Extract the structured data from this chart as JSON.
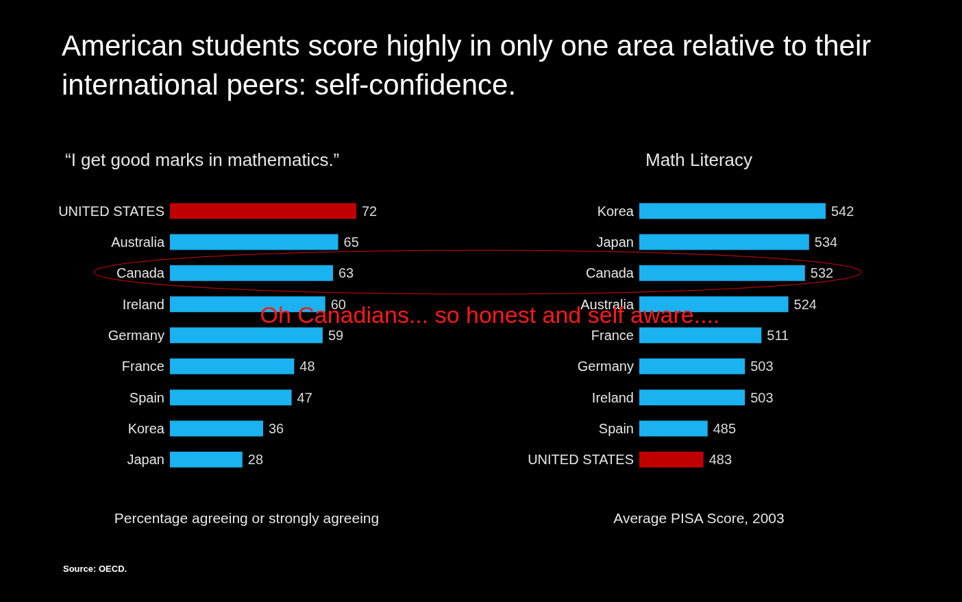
{
  "chart_data": [
    {
      "type": "bar",
      "orientation": "horizontal",
      "title": "American students score highly in only one area relative to their international peers: self-confidence.",
      "subtitle": "“I get good marks in mathematics.”",
      "xlabel": "Percentage agreeing or strongly agreeing",
      "categories": [
        "UNITED STATES",
        "Australia",
        "Canada",
        "Ireland",
        "Germany",
        "France",
        "Spain",
        "Korea",
        "Japan"
      ],
      "values": [
        72,
        65,
        63,
        60,
        59,
        48,
        47,
        36,
        28
      ],
      "colors": [
        "#c00000",
        "#1ab2f0",
        "#1ab2f0",
        "#1ab2f0",
        "#1ab2f0",
        "#1ab2f0",
        "#1ab2f0",
        "#1ab2f0",
        "#1ab2f0"
      ],
      "xlim": [
        0,
        72
      ],
      "tick_labels": "y",
      "data_labels": true,
      "annotations": [
        "Oh Canadians... so honest and self aware....",
        "Source:  OECD."
      ]
    },
    {
      "type": "bar",
      "orientation": "horizontal",
      "title": "Math Literacy",
      "xlabel": "Average PISA Score, 2003",
      "categories": [
        "Korea",
        "Japan",
        "Canada",
        "Australia",
        "France",
        "Germany",
        "Ireland",
        "Spain",
        "UNITED STATES"
      ],
      "values": [
        542,
        534,
        532,
        524,
        511,
        503,
        503,
        485,
        483
      ],
      "colors": [
        "#1ab2f0",
        "#1ab2f0",
        "#1ab2f0",
        "#1ab2f0",
        "#1ab2f0",
        "#1ab2f0",
        "#1ab2f0",
        "#1ab2f0",
        "#c00000"
      ],
      "xlim": [
        452,
        542
      ],
      "tick_labels": "y",
      "data_labels": true
    }
  ]
}
